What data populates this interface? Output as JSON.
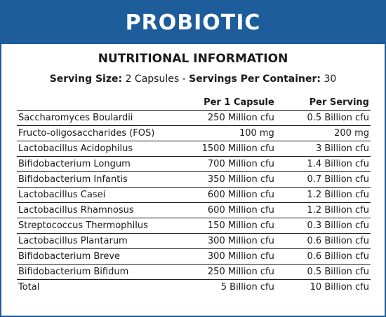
{
  "banner": {
    "title": "PROBIOTIC"
  },
  "heading": "NUTRITIONAL INFORMATION",
  "serving": {
    "size_label": "Serving Size:",
    "size_value": "2 Capsules",
    "separator": "-",
    "per_container_label": "Servings Per Container:",
    "per_container_value": "30"
  },
  "table": {
    "headers": [
      "",
      "Per 1 Capsule",
      "Per Serving"
    ],
    "rows": [
      [
        "Saccharomyces Boulardii",
        "250 Million cfu",
        "0.5 Billion cfu"
      ],
      [
        "Fructo-oligosaccharides (FOS)",
        "100 mg",
        "200 mg"
      ],
      [
        "Lactobacillus Acidophilus",
        "1500 Million cfu",
        "3 Billion cfu"
      ],
      [
        "Bifidobacterium Longum",
        "700 Million cfu",
        "1.4 Billion cfu"
      ],
      [
        "Bifidobacterium Infantis",
        "350 Million cfu",
        "0.7 Billion cfu"
      ],
      [
        "Lactobacillus Casei",
        "600 Million cfu",
        "1.2 Billion cfu"
      ],
      [
        "Lactobacillus Rhamnosus",
        "600 Million cfu",
        "1.2 Billion cfu"
      ],
      [
        "Streptococcus Thermophilus",
        "150 Million cfu",
        "0.3 Billion cfu"
      ],
      [
        "Lactobacillus Plantarum",
        "300 Million cfu",
        "0.6 Billion cfu"
      ],
      [
        "Bifidobacterium Breve",
        "300 Million cfu",
        "0.6 Billion cfu"
      ],
      [
        "Bifidobacterium Bifidum",
        "250 Million cfu",
        "0.5 Billion cfu"
      ],
      [
        "Total",
        "5 Billion cfu",
        "10 Billion cfu"
      ]
    ]
  },
  "colors": {
    "brand_blue": "#1d5d9b",
    "text": "#1a1a1a",
    "background": "#ffffff"
  }
}
